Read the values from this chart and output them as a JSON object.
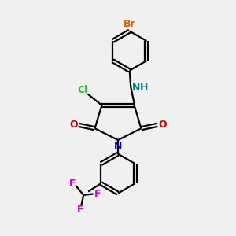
{
  "bg_color": "#f0f0f0",
  "bond_color": "#000000",
  "atom_colors": {
    "Br": "#cc6600",
    "N_nh": "#008080",
    "Cl": "#22cc22",
    "O": "#cc0000",
    "N": "#0000cc",
    "F": "#cc00cc"
  },
  "figsize": [
    3.0,
    3.0
  ],
  "dpi": 100,
  "lw": 1.6,
  "ring_r": 0.85
}
